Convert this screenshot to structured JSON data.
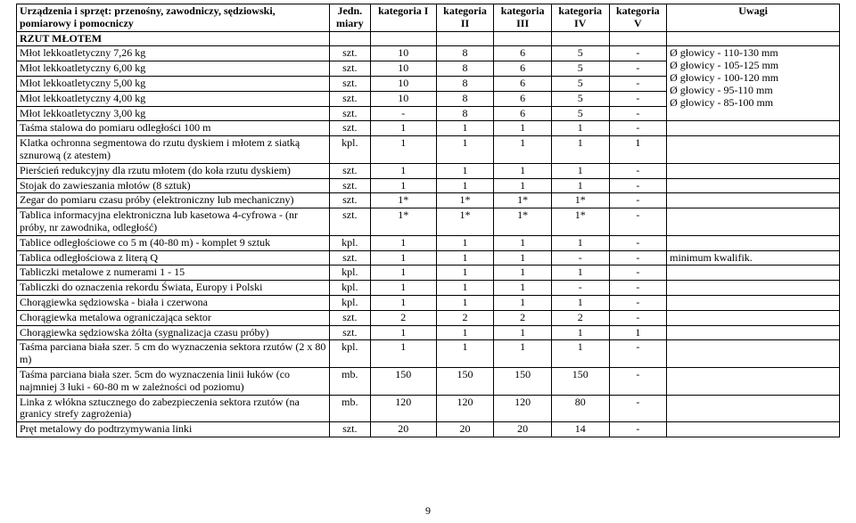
{
  "columns": {
    "desc": "Urządzenia i sprzęt: przenośny, zawodniczy, sędziowski, pomiarowy i pomocniczy",
    "unit": "Jedn. miary",
    "cat1": "kategoria I",
    "cat2": "kategoria II",
    "cat3": "kategoria III",
    "cat4": "kategoria IV",
    "cat5": "kategoria V",
    "notes": "Uwagi"
  },
  "section_title": "RZUT MŁOTEM",
  "notes_block": "Ø głowicy - 110-130 mm\nØ głowicy - 105-125 mm\nØ głowicy - 100-120 mm\nØ głowicy - 95-110 mm\nØ głowicy - 85-100 mm",
  "widths": {
    "desc": "38%",
    "unit": "5%",
    "cat1": "8%",
    "cat2": "7%",
    "cat3": "7%",
    "cat4": "7%",
    "cat5": "7%",
    "notes": "21%"
  },
  "hammer_rows": [
    {
      "desc": "Młot lekkoatletyczny 7,26 kg",
      "unit": "szt.",
      "c1": "10",
      "c2": "8",
      "c3": "6",
      "c4": "5",
      "c5": "-"
    },
    {
      "desc": "Młot lekkoatletyczny 6,00 kg",
      "unit": "szt.",
      "c1": "10",
      "c2": "8",
      "c3": "6",
      "c4": "5",
      "c5": "-"
    },
    {
      "desc": "Młot lekkoatletyczny 5,00 kg",
      "unit": "szt.",
      "c1": "10",
      "c2": "8",
      "c3": "6",
      "c4": "5",
      "c5": "-"
    },
    {
      "desc": "Młot lekkoatletyczny 4,00 kg",
      "unit": "szt.",
      "c1": "10",
      "c2": "8",
      "c3": "6",
      "c4": "5",
      "c5": "-"
    },
    {
      "desc": "Młot lekkoatletyczny 3,00 kg",
      "unit": "szt.",
      "c1": "-",
      "c2": "8",
      "c3": "6",
      "c4": "5",
      "c5": "-"
    }
  ],
  "rows": [
    {
      "desc": "Taśma stalowa do pomiaru odległości 100 m",
      "unit": "szt.",
      "c1": "1",
      "c2": "1",
      "c3": "1",
      "c4": "1",
      "c5": "-",
      "note": ""
    },
    {
      "desc": "Klatka ochronna segmentowa do rzutu dyskiem i młotem z siatką sznurową (z atestem)",
      "unit": "kpl.",
      "c1": "1",
      "c2": "1",
      "c3": "1",
      "c4": "1",
      "c5": "1",
      "note": ""
    },
    {
      "desc": "Pierścień redukcyjny dla rzutu młotem (do koła rzutu dyskiem)",
      "unit": "szt.",
      "c1": "1",
      "c2": "1",
      "c3": "1",
      "c4": "1",
      "c5": "-",
      "note": ""
    },
    {
      "desc": "Stojak do zawieszania młotów (8 sztuk)",
      "unit": "szt.",
      "c1": "1",
      "c2": "1",
      "c3": "1",
      "c4": "1",
      "c5": "-",
      "note": ""
    },
    {
      "desc": "Zegar do pomiaru czasu próby (elektroniczny lub mechaniczny)",
      "unit": "szt.",
      "c1": "1*",
      "c2": "1*",
      "c3": "1*",
      "c4": "1*",
      "c5": "-",
      "note": ""
    },
    {
      "desc": "Tablica informacyjna elektroniczna lub kasetowa 4-cyfrowa - (nr próby, nr zawodnika, odległość)",
      "unit": "szt.",
      "c1": "1*",
      "c2": "1*",
      "c3": "1*",
      "c4": "1*",
      "c5": "-",
      "note": ""
    },
    {
      "desc": "Tablice odległościowe co 5 m (40-80 m) - komplet 9 sztuk",
      "unit": "kpl.",
      "c1": "1",
      "c2": "1",
      "c3": "1",
      "c4": "1",
      "c5": "-",
      "note": ""
    },
    {
      "desc": "Tablica odległościowa z literą Q",
      "unit": "szt.",
      "c1": "1",
      "c2": "1",
      "c3": "1",
      "c4": "-",
      "c5": "-",
      "note": "minimum kwalifik."
    },
    {
      "desc": "Tabliczki metalowe z numerami 1 - 15",
      "unit": "kpl.",
      "c1": "1",
      "c2": "1",
      "c3": "1",
      "c4": "1",
      "c5": "-",
      "note": ""
    },
    {
      "desc": "Tabliczki do oznaczenia rekordu Świata, Europy i Polski",
      "unit": "kpl.",
      "c1": "1",
      "c2": "1",
      "c3": "1",
      "c4": "-",
      "c5": "-",
      "note": ""
    },
    {
      "desc": "Chorągiewka sędziowska - biała i czerwona",
      "unit": "kpl.",
      "c1": "1",
      "c2": "1",
      "c3": "1",
      "c4": "1",
      "c5": "-",
      "note": ""
    },
    {
      "desc": "Chorągiewka metalowa ograniczająca sektor",
      "unit": "szt.",
      "c1": "2",
      "c2": "2",
      "c3": "2",
      "c4": "2",
      "c5": "-",
      "note": ""
    },
    {
      "desc": "Chorągiewka sędziowska żółta (sygnalizacja czasu próby)",
      "unit": "szt.",
      "c1": "1",
      "c2": "1",
      "c3": "1",
      "c4": "1",
      "c5": "1",
      "note": ""
    },
    {
      "desc": "Taśma parciana biała szer. 5 cm do wyznaczenia sektora rzutów (2 x 80 m)",
      "unit": "kpl.",
      "c1": "1",
      "c2": "1",
      "c3": "1",
      "c4": "1",
      "c5": "-",
      "note": ""
    },
    {
      "desc": "Taśma parciana biała szer. 5cm do wyznaczenia linii łuków (co najmniej 3 łuki - 60-80 m w zależności od poziomu)",
      "unit": "mb.",
      "c1": "150",
      "c2": "150",
      "c3": "150",
      "c4": "150",
      "c5": "-",
      "note": ""
    },
    {
      "desc": "Linka z włókna sztucznego do zabezpieczenia sektora rzutów (na granicy strefy zagrożenia)",
      "unit": "mb.",
      "c1": "120",
      "c2": "120",
      "c3": "120",
      "c4": "80",
      "c5": "-",
      "note": ""
    },
    {
      "desc": "Pręt metalowy do podtrzymywania linki",
      "unit": "szt.",
      "c1": "20",
      "c2": "20",
      "c3": "20",
      "c4": "14",
      "c5": "-",
      "note": ""
    }
  ],
  "page_number": "9"
}
